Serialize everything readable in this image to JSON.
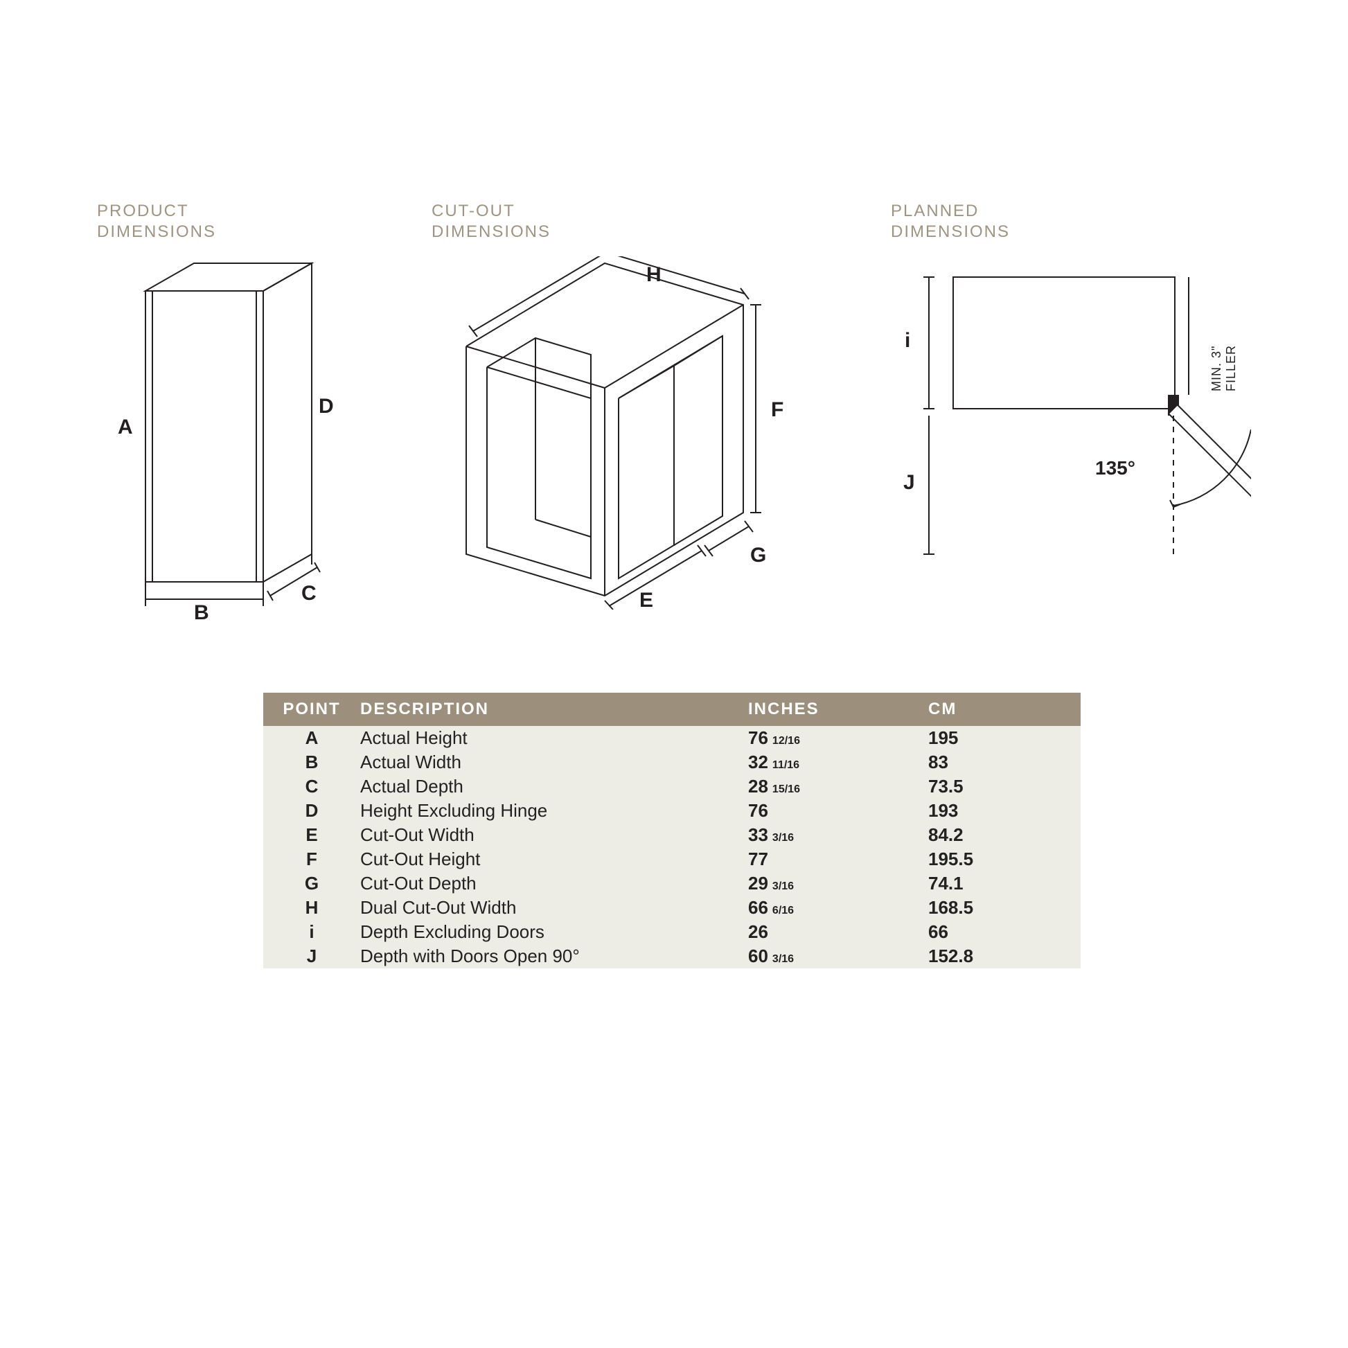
{
  "colors": {
    "heading": "#a09481",
    "tableHeaderBg": "#9c8f7b",
    "tableHeaderFg": "#ffffff",
    "tableBodyBg": "#edece5",
    "stroke": "#231f20",
    "background": "#ffffff"
  },
  "panels": {
    "product": {
      "titleLine1": "PRODUCT",
      "titleLine2": "DIMENSIONS",
      "labels": {
        "A": "A",
        "B": "B",
        "C": "C",
        "D": "D"
      }
    },
    "cutout": {
      "titleLine1": "CUT-OUT",
      "titleLine2": "DIMENSIONS",
      "labels": {
        "E": "E",
        "F": "F",
        "G": "G",
        "H": "H"
      }
    },
    "planned": {
      "titleLine1": "PLANNED",
      "titleLine2": "DIMENSIONS",
      "labels": {
        "i": "i",
        "J": "J"
      },
      "angle": "135°",
      "filler": "MIN. 3\" FILLER"
    }
  },
  "table": {
    "header": {
      "point": "POINT",
      "desc": "DESCRIPTION",
      "inches": "INCHES",
      "cm": "CM"
    },
    "rows": [
      {
        "pt": "A",
        "desc": "Actual Height",
        "inWhole": "76",
        "inFrac": "12/16",
        "cm": "195"
      },
      {
        "pt": "B",
        "desc": "Actual Width",
        "inWhole": "32",
        "inFrac": "11/16",
        "cm": "83"
      },
      {
        "pt": "C",
        "desc": "Actual Depth",
        "inWhole": "28",
        "inFrac": "15/16",
        "cm": "73.5"
      },
      {
        "pt": "D",
        "desc": "Height Excluding Hinge",
        "inWhole": "76",
        "inFrac": "",
        "cm": "193"
      },
      {
        "pt": "E",
        "desc": "Cut-Out Width",
        "inWhole": "33",
        "inFrac": "3/16",
        "cm": "84.2"
      },
      {
        "pt": "F",
        "desc": "Cut-Out Height",
        "inWhole": "77",
        "inFrac": "",
        "cm": "195.5"
      },
      {
        "pt": "G",
        "desc": "Cut-Out Depth",
        "inWhole": "29",
        "inFrac": "3/16",
        "cm": "74.1"
      },
      {
        "pt": "H",
        "desc": "Dual Cut-Out Width",
        "inWhole": "66",
        "inFrac": "6/16",
        "cm": "168.5"
      },
      {
        "pt": "i",
        "desc": "Depth Excluding Doors",
        "inWhole": "26",
        "inFrac": "",
        "cm": "66"
      },
      {
        "pt": "J",
        "desc": "Depth with Doors Open 90°",
        "inWhole": "60",
        "inFrac": "3/16",
        "cm": "152.8"
      }
    ]
  }
}
